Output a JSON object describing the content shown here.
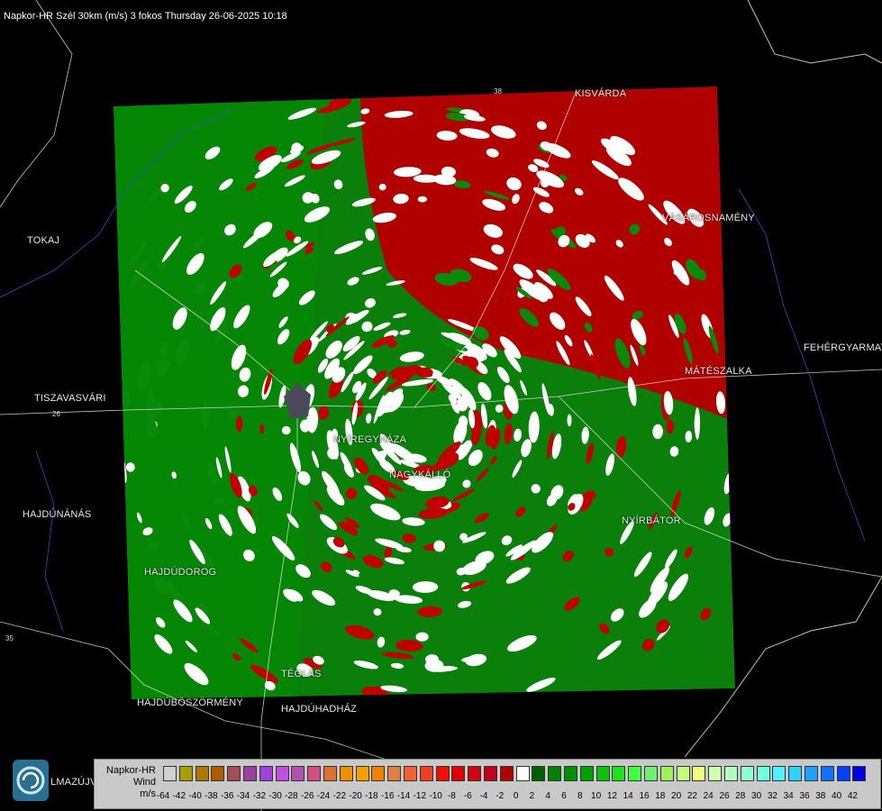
{
  "title": "Napkor-HR Szél 30km (m/s) 3 fokos Thursday 26-06-2025 10:18",
  "towns": [
    {
      "name": "KISVÁRDA"
    },
    {
      "name": "TOKAJ"
    },
    {
      "name": "VÁSÁROSNAMÉNY"
    },
    {
      "name": "FEHÉRGYARMAT"
    },
    {
      "name": "MÁTÉSZALKA"
    },
    {
      "name": "TISZAVASVÁRI"
    },
    {
      "name": "NYÍREGYHÁZA"
    },
    {
      "name": "NAGYKÁLLÓ"
    },
    {
      "name": "HAJDÚNÁNÁS"
    },
    {
      "name": "NYÍRBÁTOR"
    },
    {
      "name": "HAJDÚDOROG"
    },
    {
      "name": "TÉGLÁS"
    },
    {
      "name": "HAJDÚBÖSZÖRMÉNY"
    },
    {
      "name": "HAJDÚHADHÁZ"
    },
    {
      "name": "LMAZÚJVÁR"
    }
  ],
  "road_numbers": [
    "26",
    "35",
    "38"
  ],
  "legend": {
    "title_lines": [
      "Napkor-HR",
      "Wind",
      "m/s"
    ],
    "ticks": [
      "-64",
      "-42",
      "-40",
      "-38",
      "-36",
      "-34",
      "-32",
      "-30",
      "-28",
      "-26",
      "-24",
      "-22",
      "-20",
      "-18",
      "-16",
      "-14",
      "-12",
      "-10",
      "-8",
      "-6",
      "-4",
      "-2",
      "0",
      "2",
      "4",
      "6",
      "8",
      "10",
      "12",
      "14",
      "16",
      "18",
      "20",
      "22",
      "24",
      "26",
      "28",
      "30",
      "32",
      "34",
      "36",
      "38",
      "40",
      "42"
    ],
    "colors": [
      "#d0d0d0",
      "#a7a000",
      "#b07800",
      "#b05a00",
      "#a05050",
      "#9a40a0",
      "#a040e0",
      "#c050e0",
      "#b050b0",
      "#d05080",
      "#e07030",
      "#f09000",
      "#f0a000",
      "#f08000",
      "#e08040",
      "#f06030",
      "#f04020",
      "#f01000",
      "#e00000",
      "#d00010",
      "#c00020",
      "#b00000",
      "#ffffff",
      "#006000",
      "#008000",
      "#009000",
      "#00a000",
      "#10c010",
      "#20e020",
      "#40ff40",
      "#70f070",
      "#a0f060",
      "#c0ff80",
      "#f0ff80",
      "#d0ffb0",
      "#b0ffc0",
      "#90ffd0",
      "#70ffe0",
      "#50f0ff",
      "#30d0ff",
      "#20a0ff",
      "#1070ff",
      "#0040ff",
      "#0000e0"
    ]
  },
  "colors": {
    "approach": "#0a8a0a",
    "recede": "#b40000"
  }
}
